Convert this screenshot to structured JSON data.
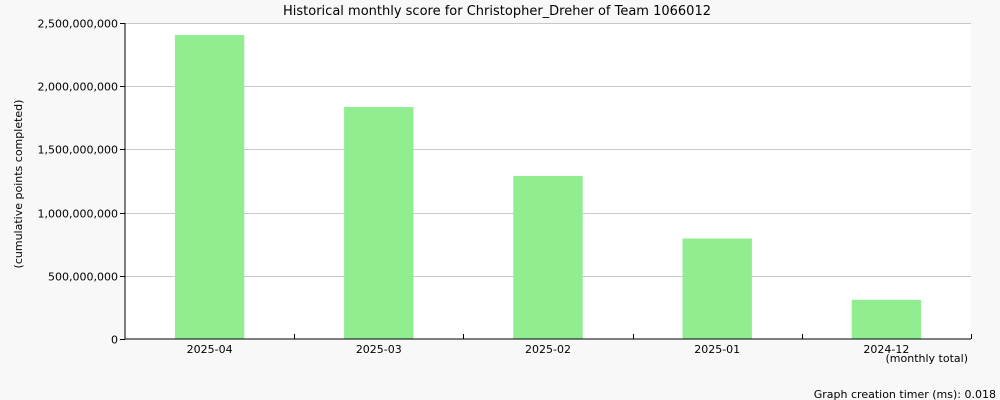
{
  "chart_data": {
    "type": "bar",
    "title": "Historical monthly score for Christopher_Dreher of Team 1066012",
    "ylabel": "(cumulative points completed)",
    "xlabel": "(monthly total)",
    "categories": [
      "2025-04",
      "2025-03",
      "2025-02",
      "2025-01",
      "2024-12"
    ],
    "values": [
      2405000000,
      1835000000,
      1290000000,
      795000000,
      310000000
    ],
    "ylim": [
      0,
      2500000000
    ],
    "yticks": [
      0,
      500000000,
      1000000000,
      1500000000,
      2000000000,
      2500000000
    ],
    "ytick_labels": [
      "0",
      "500,000,000",
      "1,000,000,000",
      "1,500,000,000",
      "2,000,000,000",
      "2,500,000,000"
    ],
    "grid": true,
    "bar_color": "#90ee90",
    "grid_color": "#c8c8c8"
  },
  "footer": {
    "timer_text": "Graph creation timer (ms): 0.018"
  }
}
